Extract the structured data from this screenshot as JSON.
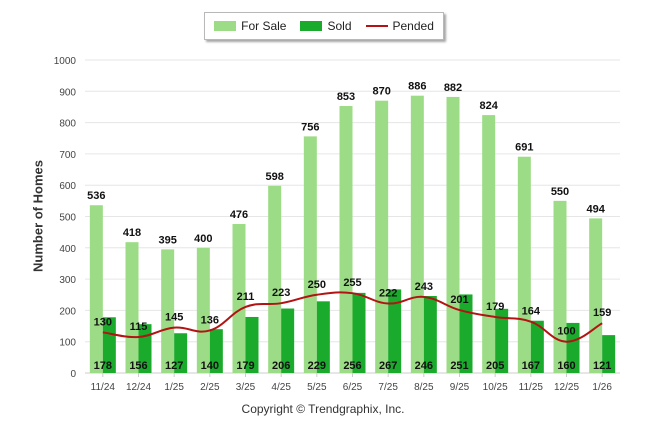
{
  "legend": {
    "for_sale": "For Sale",
    "sold": "Sold",
    "pended": "Pended"
  },
  "copyright": "Copyright © Trendgraphix, Inc.",
  "colors": {
    "for_sale": "#9ddc86",
    "sold": "#1aaa2c",
    "pended": "#b31313",
    "grid": "#e6e6e6",
    "axis_text": "#444444"
  },
  "chart_data": {
    "type": "bar",
    "title": "",
    "xlabel": "",
    "ylabel": "Number of Homes",
    "ylim": [
      0,
      1000
    ],
    "yticks": [
      0,
      100,
      200,
      300,
      400,
      500,
      600,
      700,
      800,
      900,
      1000
    ],
    "categories": [
      "11/24",
      "12/24",
      "1/25",
      "2/25",
      "3/25",
      "4/25",
      "5/25",
      "6/25",
      "7/25",
      "8/25",
      "9/25",
      "10/25",
      "11/25",
      "12/25",
      "1/26"
    ],
    "series": [
      {
        "name": "For Sale",
        "type": "bar",
        "values": [
          536,
          418,
          395,
          400,
          476,
          598,
          756,
          853,
          870,
          886,
          882,
          824,
          691,
          550,
          494
        ]
      },
      {
        "name": "Sold",
        "type": "bar",
        "values": [
          178,
          156,
          127,
          140,
          179,
          206,
          229,
          256,
          267,
          246,
          251,
          205,
          167,
          160,
          121
        ]
      },
      {
        "name": "Pended",
        "type": "line",
        "values": [
          130,
          115,
          145,
          136,
          211,
          223,
          250,
          255,
          222,
          243,
          201,
          179,
          164,
          100,
          159
        ]
      }
    ],
    "grid": true,
    "legend_position": "top-center"
  }
}
